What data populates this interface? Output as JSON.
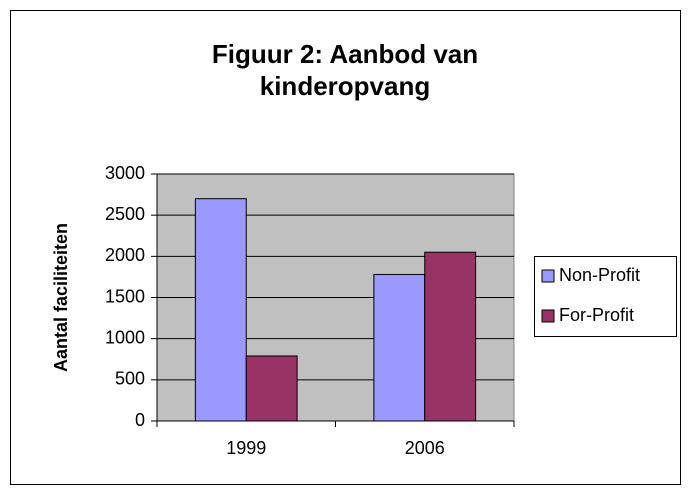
{
  "chart_data": {
    "type": "bar",
    "title": "Figuur 2: Aanbod van kinderopvang",
    "y_label": "Aantal faciliteiten",
    "categories": [
      "1999",
      "2006"
    ],
    "series": [
      {
        "name": "Non-Profit",
        "color": "#9999ff",
        "values": [
          2700,
          1780
        ]
      },
      {
        "name": "For-Profit",
        "color": "#993366",
        "values": [
          790,
          2050
        ]
      }
    ],
    "ylim": [
      0,
      3000
    ],
    "yticks": [
      0,
      500,
      1000,
      1500,
      2000,
      2500,
      3000
    ],
    "grid": true,
    "legend": "right"
  }
}
